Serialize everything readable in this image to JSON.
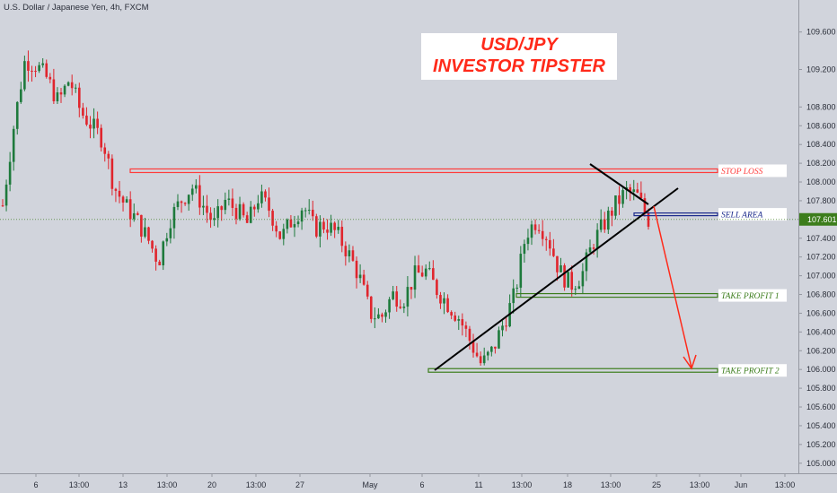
{
  "header": {
    "instrument": "U.S. Dollar / Japanese Yen, 4h, FXCM"
  },
  "banner": {
    "line1": "USD/JPY",
    "line2": "INVESTOR TIPSTER"
  },
  "colors": {
    "background": "#d1d4dc",
    "bull": "#1e7a3c",
    "bear": "#e0252d",
    "stop": "#ff3b3b",
    "sell": "#1c2b8c",
    "profit": "#3c7d1c",
    "arrow": "#ff2a1a",
    "trend": "#000000",
    "price_label": "#3c7d1c"
  },
  "chart_data": {
    "type": "candlestick",
    "title": "U.S. Dollar / Japanese Yen, 4h, FXCM",
    "ylim": [
      104.95,
      109.75
    ],
    "y_ticks": [
      "109.600",
      "109.200",
      "108.800",
      "108.600",
      "108.400",
      "108.200",
      "108.000",
      "107.800",
      "107.600",
      "107.400",
      "107.200",
      "107.000",
      "106.800",
      "106.600",
      "106.400",
      "106.200",
      "106.000",
      "105.800",
      "105.600",
      "105.400",
      "105.200",
      "105.000"
    ],
    "x_ticks": [
      "6",
      "13:00",
      "13",
      "13:00",
      "20",
      "13:00",
      "27",
      "May",
      "6",
      "11",
      "13:00",
      "18",
      "13:00",
      "25",
      "13:00",
      "Jun",
      "13:00"
    ],
    "current_price": "107.601",
    "close_series": [
      107.75,
      108.6,
      109.3,
      109.25,
      109.1,
      108.85,
      109.1,
      108.75,
      108.6,
      108.45,
      107.95,
      107.75,
      107.6,
      107.4,
      107.15,
      107.6,
      107.8,
      107.95,
      107.75,
      107.55,
      107.8,
      107.7,
      107.55,
      107.85,
      107.7,
      107.4,
      107.6,
      107.75,
      107.5,
      107.55,
      107.45,
      107.25,
      107.0,
      106.6,
      106.55,
      106.8,
      106.75,
      107.0,
      107.05,
      106.85,
      106.7,
      106.55,
      106.3,
      106.05,
      106.2,
      106.5,
      106.8,
      107.45,
      107.6,
      107.4,
      107.05,
      106.9,
      107.0,
      107.35,
      107.55,
      107.75,
      107.9,
      107.85,
      107.6
    ],
    "levels": [
      {
        "label": "STOP LOSS",
        "price": 108.12
      },
      {
        "label": "SELL AREA",
        "price": 107.655
      },
      {
        "label": "TAKE PROFIT  1",
        "price": 106.79
      },
      {
        "label": "TAKE PROFIT 2",
        "price": 105.99
      }
    ],
    "grid": false,
    "legend": "none"
  }
}
